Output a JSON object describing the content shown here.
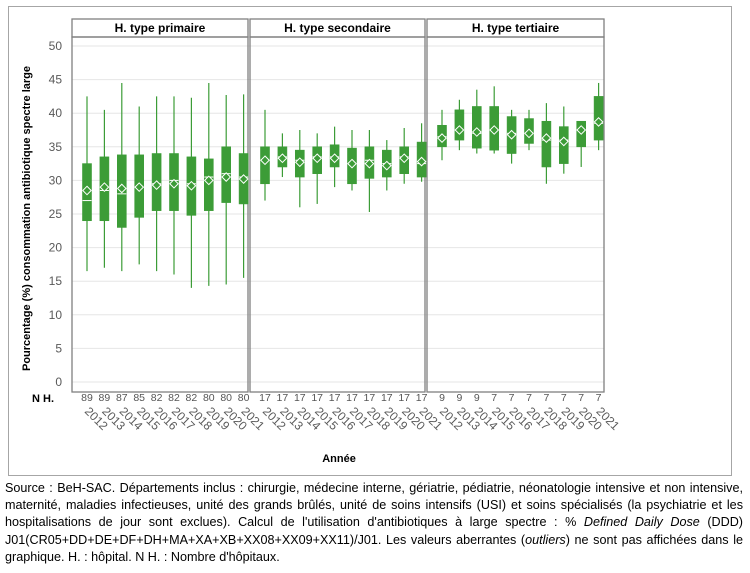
{
  "chart_data": {
    "type": "box",
    "ylabel": "Pourcentage (%) consommation antibiotique spectre large",
    "xlabel": "Année",
    "ylim": [
      0,
      50
    ],
    "yticks": [
      0,
      5,
      10,
      15,
      20,
      25,
      30,
      35,
      40,
      45,
      50
    ],
    "grid": true,
    "count_label": "N H.",
    "x": [
      "2012",
      "2013",
      "2014",
      "2015",
      "2016",
      "2017",
      "2018",
      "2019",
      "2020",
      "2021"
    ],
    "color": "#3c9c37",
    "panels": [
      {
        "title": "H. type primaire",
        "n": [
          "89",
          "89",
          "87",
          "85",
          "82",
          "82",
          "82",
          "80",
          "80",
          "80"
        ],
        "boxes": [
          {
            "low": 16.5,
            "q1": 24.0,
            "median": 27.0,
            "mean": 28.5,
            "q3": 32.5,
            "high": 42.5
          },
          {
            "low": 17.0,
            "q1": 24.0,
            "median": 28.5,
            "mean": 29.0,
            "q3": 33.5,
            "high": 40.5
          },
          {
            "low": 16.5,
            "q1": 23.0,
            "median": 28.0,
            "mean": 28.8,
            "q3": 33.8,
            "high": 44.5
          },
          {
            "low": 17.5,
            "q1": 24.5,
            "median": 29.0,
            "mean": 29.0,
            "q3": 33.8,
            "high": 41.0
          },
          {
            "low": 16.5,
            "q1": 25.5,
            "median": 29.5,
            "mean": 29.3,
            "q3": 34.0,
            "high": 42.5
          },
          {
            "low": 16.0,
            "q1": 25.5,
            "median": 30.0,
            "mean": 29.5,
            "q3": 34.0,
            "high": 42.5
          },
          {
            "low": 14.0,
            "q1": 24.8,
            "median": 29.5,
            "mean": 29.2,
            "q3": 33.5,
            "high": 42.3
          },
          {
            "low": 14.3,
            "q1": 25.5,
            "median": 30.5,
            "mean": 30.0,
            "q3": 33.2,
            "high": 44.5
          },
          {
            "low": 14.5,
            "q1": 26.7,
            "median": 31.0,
            "mean": 30.5,
            "q3": 35.0,
            "high": 42.7
          },
          {
            "low": 15.5,
            "q1": 26.5,
            "median": 30.5,
            "mean": 30.2,
            "q3": 34.0,
            "high": 42.8
          }
        ]
      },
      {
        "title": "H. type secondaire",
        "n": [
          "17",
          "17",
          "17",
          "17",
          "17",
          "17",
          "17",
          "17",
          "17",
          "17"
        ],
        "boxes": [
          {
            "low": 27.0,
            "q1": 29.5,
            "median": 33.0,
            "mean": 33.0,
            "q3": 35.0,
            "high": 40.5
          },
          {
            "low": 30.5,
            "q1": 32.0,
            "median": 33.5,
            "mean": 33.3,
            "q3": 35.0,
            "high": 37.0
          },
          {
            "low": 26.0,
            "q1": 30.5,
            "median": 33.0,
            "mean": 32.7,
            "q3": 34.5,
            "high": 37.5
          },
          {
            "low": 26.5,
            "q1": 31.0,
            "median": 33.5,
            "mean": 33.3,
            "q3": 35.0,
            "high": 37.0
          },
          {
            "low": 29.0,
            "q1": 32.0,
            "median": 33.5,
            "mean": 33.3,
            "q3": 35.3,
            "high": 38.0
          },
          {
            "low": 28.5,
            "q1": 29.5,
            "median": 32.5,
            "mean": 32.5,
            "q3": 34.8,
            "high": 37.5
          },
          {
            "low": 25.3,
            "q1": 30.3,
            "median": 33.0,
            "mean": 32.5,
            "q3": 35.0,
            "high": 37.5
          },
          {
            "low": 28.5,
            "q1": 30.5,
            "median": 32.5,
            "mean": 32.2,
            "q3": 34.5,
            "high": 36.0
          },
          {
            "low": 29.5,
            "q1": 31.0,
            "median": 33.5,
            "mean": 33.3,
            "q3": 35.0,
            "high": 37.8
          },
          {
            "low": 29.8,
            "q1": 30.5,
            "median": 32.5,
            "mean": 32.8,
            "q3": 35.7,
            "high": 38.5
          }
        ]
      },
      {
        "title": "H. type tertiaire",
        "n": [
          "9",
          "9",
          "9",
          "7",
          "7",
          "7",
          "7",
          "7",
          "7",
          "7"
        ],
        "boxes": [
          {
            "low": 33.0,
            "q1": 35.0,
            "median": 36.5,
            "mean": 36.3,
            "q3": 38.2,
            "high": 40.5
          },
          {
            "low": 34.5,
            "q1": 36.0,
            "median": 37.5,
            "mean": 37.5,
            "q3": 40.5,
            "high": 42.0
          },
          {
            "low": 34.0,
            "q1": 34.8,
            "median": 37.0,
            "mean": 37.2,
            "q3": 41.0,
            "high": 43.5
          },
          {
            "low": 34.0,
            "q1": 34.5,
            "median": 37.5,
            "mean": 37.5,
            "q3": 41.0,
            "high": 44.0
          },
          {
            "low": 32.5,
            "q1": 34.0,
            "median": 37.0,
            "mean": 36.8,
            "q3": 39.5,
            "high": 40.5
          },
          {
            "low": 34.5,
            "q1": 35.5,
            "median": 37.0,
            "mean": 37.0,
            "q3": 39.2,
            "high": 40.5
          },
          {
            "low": 29.5,
            "q1": 32.0,
            "median": 36.0,
            "mean": 36.3,
            "q3": 38.8,
            "high": 41.5
          },
          {
            "low": 31.0,
            "q1": 32.5,
            "median": 36.0,
            "mean": 35.8,
            "q3": 38.0,
            "high": 41.0
          },
          {
            "low": 32.0,
            "q1": 35.0,
            "median": 37.5,
            "mean": 37.5,
            "q3": 38.8,
            "high": 38.8
          },
          {
            "low": 34.5,
            "q1": 36.0,
            "median": 38.5,
            "mean": 38.7,
            "q3": 42.5,
            "high": 44.5
          }
        ]
      }
    ]
  },
  "caption": {
    "part1": "Source : BeH-SAC. Départements inclus : chirurgie, médecine interne, gériatrie, pédiatrie, néonatologie intensive et non intensive, maternité, maladies infectieuses, unité des grands brûlés, unité de soins intensifs (USI) et soins spécialisés (la psychiatrie et les hospitalisations de jour sont exclues). Calcul de l'utilisation d'antibiotiques à large spectre : % ",
    "ddd": "Defined Daily Dose",
    "part2": " (DDD) J01(CR05+DD+DE+DF+DH+MA+XA+XB+XX08+XX09+XX11)/J01. Les valeurs aberrantes (",
    "outliers": "outliers",
    "part3": ") ne sont pas affichées dans le graphique. H. : hôpital. N H. : Nombre d'hôpitaux."
  }
}
